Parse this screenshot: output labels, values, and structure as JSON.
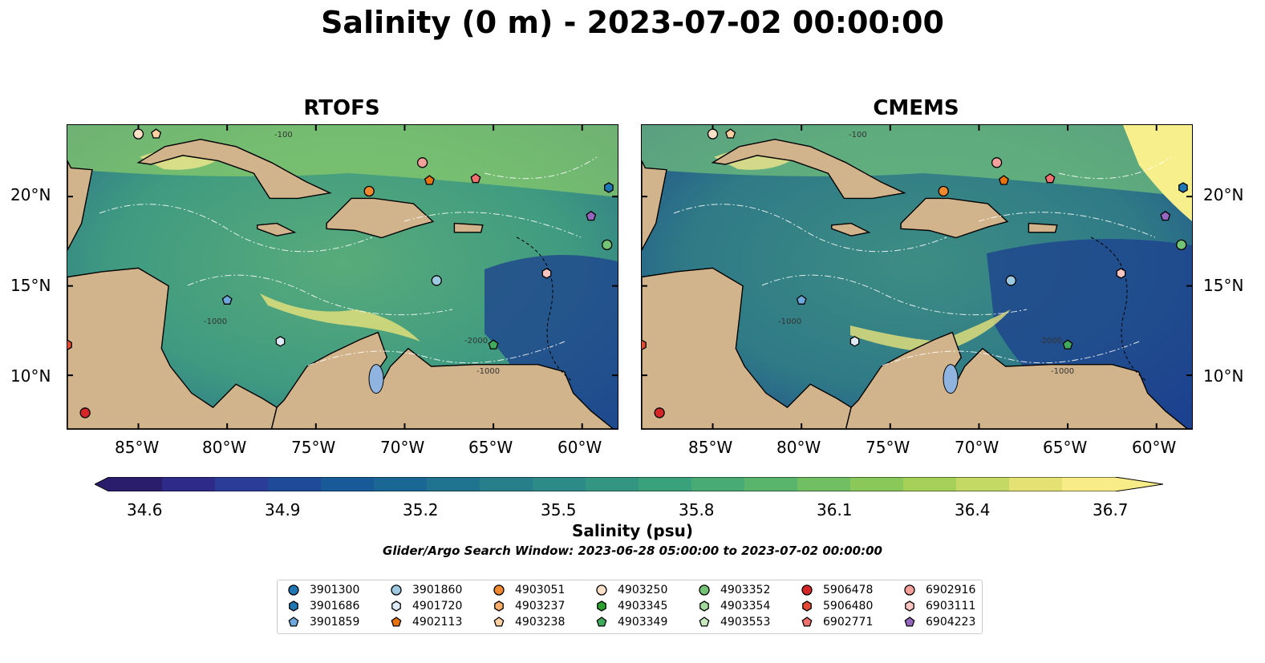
{
  "title": "Salinity (0 m) - 2023-07-02 00:00:00",
  "panels": [
    {
      "title": "RTOFS"
    },
    {
      "title": "CMEMS"
    }
  ],
  "axes": {
    "lon_labels": [
      "85°W",
      "80°W",
      "75°W",
      "70°W",
      "65°W",
      "60°W"
    ],
    "lat_labels": [
      "20°N",
      "15°N",
      "10°N"
    ],
    "lon_range": [
      -89,
      -58
    ],
    "lat_range": [
      7,
      24
    ]
  },
  "colorbar": {
    "label": "Salinity (psu)",
    "ticks": [
      "34.6",
      "34.9",
      "35.2",
      "35.5",
      "35.8",
      "36.1",
      "36.4",
      "36.7"
    ],
    "range": [
      34.6,
      36.7
    ],
    "extend": "both",
    "colormap": "haline"
  },
  "search_window": "Glider/Argo Search Window: 2023-06-28 05:00:00 to 2023-07-02 00:00:00",
  "contour_labels": [
    "-100",
    "-1000",
    "-2000",
    "-1000"
  ],
  "land_color": "#d2b48c",
  "legend": {
    "entries": [
      {
        "id": "3901300",
        "color": "#1f77b4",
        "marker": "circle"
      },
      {
        "id": "3901686",
        "color": "#1f77b4",
        "marker": "hexagon"
      },
      {
        "id": "3901859",
        "color": "#6fa8dc",
        "marker": "pentagon"
      },
      {
        "id": "3901860",
        "color": "#9ecae1",
        "marker": "circle"
      },
      {
        "id": "4901720",
        "color": "#deebf7",
        "marker": "hexagon"
      },
      {
        "id": "4902113",
        "color": "#e6730e",
        "marker": "pentagon"
      },
      {
        "id": "4903051",
        "color": "#f0882e",
        "marker": "circle"
      },
      {
        "id": "4903237",
        "color": "#fdae6b",
        "marker": "hexagon"
      },
      {
        "id": "4903238",
        "color": "#fdd0a2",
        "marker": "pentagon"
      },
      {
        "id": "4903250",
        "color": "#fde0c5",
        "marker": "circle"
      },
      {
        "id": "4903345",
        "color": "#2ca02c",
        "marker": "hexagon"
      },
      {
        "id": "4903349",
        "color": "#41ab5d",
        "marker": "pentagon"
      },
      {
        "id": "4903352",
        "color": "#74c476",
        "marker": "circle"
      },
      {
        "id": "4903354",
        "color": "#a1d99b",
        "marker": "hexagon"
      },
      {
        "id": "4903553",
        "color": "#c7e9c0",
        "marker": "pentagon"
      },
      {
        "id": "5906478",
        "color": "#d62728",
        "marker": "circle"
      },
      {
        "id": "5906480",
        "color": "#e34a33",
        "marker": "hexagon"
      },
      {
        "id": "6902771",
        "color": "#f07070",
        "marker": "pentagon"
      },
      {
        "id": "6902916",
        "color": "#f4a09b",
        "marker": "circle"
      },
      {
        "id": "6903111",
        "color": "#fcc5c0",
        "marker": "hexagon"
      },
      {
        "id": "6904223",
        "color": "#9467bd",
        "marker": "pentagon"
      }
    ]
  },
  "floats": [
    {
      "lon": -88.0,
      "lat": 7.9,
      "color": "#d62728",
      "marker": "circle"
    },
    {
      "lon": -89.0,
      "lat": 11.7,
      "color": "#e34a33",
      "marker": "hexagon"
    },
    {
      "lon": -85.0,
      "lat": 23.5,
      "color": "#fde0c5",
      "marker": "circle"
    },
    {
      "lon": -84.0,
      "lat": 23.5,
      "color": "#fdd0a2",
      "marker": "pentagon"
    },
    {
      "lon": -80.0,
      "lat": 14.2,
      "color": "#6fa8dc",
      "marker": "pentagon"
    },
    {
      "lon": -77.0,
      "lat": 11.9,
      "color": "#deebf7",
      "marker": "hexagon"
    },
    {
      "lon": -72.0,
      "lat": 20.3,
      "color": "#f0882e",
      "marker": "circle"
    },
    {
      "lon": -69.0,
      "lat": 21.9,
      "color": "#f4a09b",
      "marker": "circle"
    },
    {
      "lon": -68.6,
      "lat": 20.9,
      "color": "#e6730e",
      "marker": "pentagon"
    },
    {
      "lon": -66.0,
      "lat": 21.0,
      "color": "#f07070",
      "marker": "pentagon"
    },
    {
      "lon": -68.2,
      "lat": 15.3,
      "color": "#9ecae1",
      "marker": "circle"
    },
    {
      "lon": -65.0,
      "lat": 11.7,
      "color": "#41ab5d",
      "marker": "pentagon"
    },
    {
      "lon": -62.0,
      "lat": 15.7,
      "color": "#fcc5c0",
      "marker": "hexagon"
    },
    {
      "lon": -59.5,
      "lat": 18.9,
      "color": "#9467bd",
      "marker": "pentagon"
    },
    {
      "lon": -58.6,
      "lat": 17.3,
      "color": "#74c476",
      "marker": "circle"
    },
    {
      "lon": -58.5,
      "lat": 20.5,
      "color": "#1f77b4",
      "marker": "hexagon"
    }
  ]
}
